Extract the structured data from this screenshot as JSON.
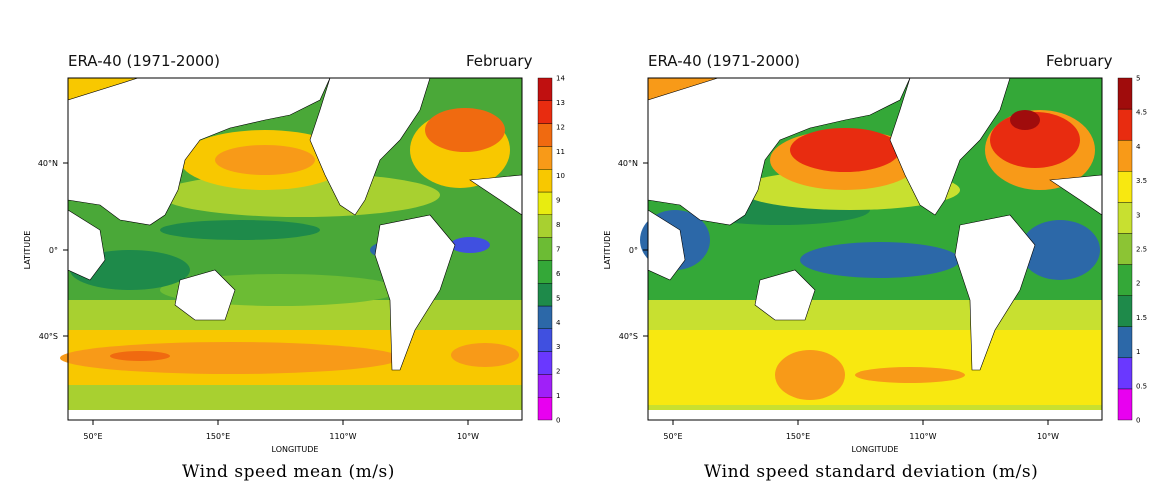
{
  "left": {
    "header_left": "ERA-40 (1971-2000)",
    "header_right": "February",
    "caption": "Wind speed mean (m/s)",
    "colorbar": {
      "ticks": [
        "0",
        "1",
        "2",
        "3",
        "4",
        "5",
        "6",
        "7",
        "8",
        "9",
        "10",
        "11",
        "12",
        "13",
        "14"
      ],
      "colors": [
        "#e800f0",
        "#a020f8",
        "#6a38ff",
        "#4050e0",
        "#2c68a8",
        "#1e8a4a",
        "#34a838",
        "#6cbc34",
        "#a8d030",
        "#e8ec10",
        "#f8c800",
        "#f89a18",
        "#f06a10",
        "#e82c10",
        "#c01010"
      ]
    }
  },
  "right": {
    "header_left": "ERA-40 (1971-2000)",
    "header_right": "February",
    "caption": "Wind speed standard deviation (m/s)",
    "colorbar": {
      "ticks": [
        "0",
        "0.5",
        "1",
        "1.5",
        "2",
        "2.5",
        "3",
        "3.5",
        "4",
        "4.5",
        "5"
      ],
      "colors": [
        "#e800f0",
        "#6a38ff",
        "#2c68a8",
        "#1e8a4a",
        "#34a838",
        "#8cc434",
        "#c8e030",
        "#f8e810",
        "#f89a18",
        "#e82c10",
        "#a00c0c"
      ]
    }
  },
  "axes": {
    "xlabel": "LONGITUDE",
    "ylabel": "LATITUDE",
    "xticks": [
      "50°E",
      "150°E",
      "110°W",
      "10°W"
    ],
    "yticks": [
      "40°N",
      "0°",
      "40°S"
    ]
  }
}
